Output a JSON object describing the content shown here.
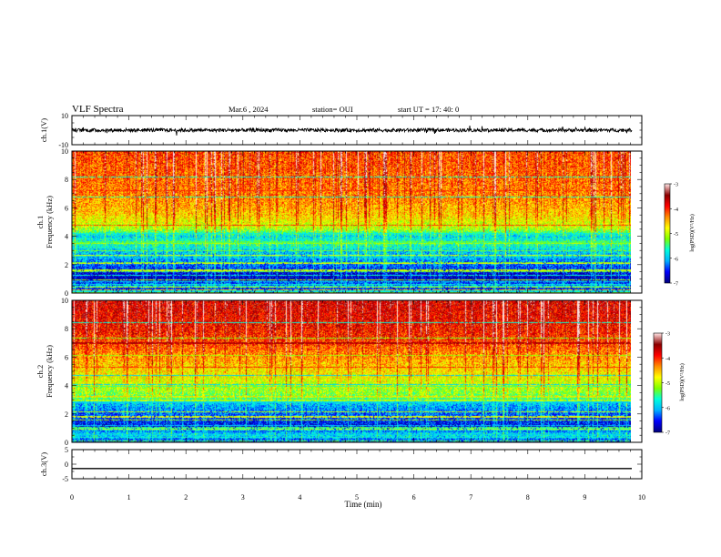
{
  "header": {
    "title": "VLF Spectra",
    "date": "Mar.6  , 2024",
    "station": "station= OUI",
    "start": "start  UT  =   17: 40: 0"
  },
  "colors": {
    "cb_stops": [
      "#00007f",
      "#0000ff",
      "#00b4ff",
      "#00ffdc",
      "#7fff00",
      "#ffff00",
      "#ff8c00",
      "#ff0000",
      "#8b0000",
      "#ffe0e0"
    ]
  },
  "chart_data": [
    {
      "type": "line",
      "name": "ch1-waveform",
      "ylabel": "ch.1(V)",
      "ylim": [
        -10,
        10
      ],
      "yticks": [
        10,
        -10
      ],
      "xlim": [
        0,
        10
      ],
      "x_extent": [
        0,
        9.83
      ],
      "level": 0,
      "noise_amplitude": 1.2
    },
    {
      "type": "heatmap",
      "name": "ch1-spectrogram",
      "ylabel": "Frequency  (kHz)",
      "channel": "ch.1",
      "ylim": [
        0,
        10
      ],
      "yticks": [
        0,
        2,
        4,
        6,
        8,
        10
      ],
      "xlim": [
        0,
        10
      ],
      "x_extent": [
        0,
        9.83
      ],
      "colorbar": {
        "label": "log(PSD)(V²/Hz)",
        "range": [
          -7,
          -3
        ],
        "ticks": [
          -3,
          -4,
          -5,
          -6,
          -7
        ]
      },
      "freq_profile": [
        [
          0,
          -6.9
        ],
        [
          0.5,
          -6.2
        ],
        [
          1.0,
          -6.8
        ],
        [
          1.5,
          -6.6
        ],
        [
          2.0,
          -6.3
        ],
        [
          3.0,
          -5.9
        ],
        [
          3.5,
          -5.6
        ],
        [
          4.0,
          -5.9
        ],
        [
          4.5,
          -5.1
        ],
        [
          5.5,
          -4.6
        ],
        [
          7.0,
          -4.3
        ],
        [
          8.5,
          -4.2
        ],
        [
          10,
          -4.1
        ]
      ],
      "lines": [
        [
          0.4,
          -5.0
        ],
        [
          7.2,
          -4.0
        ],
        [
          4.8,
          -4.1
        ],
        [
          0.2,
          -4.5
        ]
      ]
    },
    {
      "type": "heatmap",
      "name": "ch2-spectrogram",
      "ylabel": "Frequency  (kHz)",
      "channel": "ch.2",
      "ylim": [
        0,
        10
      ],
      "yticks": [
        0,
        2,
        4,
        6,
        8,
        10
      ],
      "xlim": [
        0,
        10
      ],
      "x_extent": [
        0,
        9.83
      ],
      "colorbar": {
        "label": "log(PSD)(V²/Hz)",
        "range": [
          -7,
          -3
        ],
        "ticks": [
          -3,
          -4,
          -5,
          -6,
          -7
        ]
      },
      "freq_profile": [
        [
          0,
          -6.5
        ],
        [
          0.5,
          -5.8
        ],
        [
          1.0,
          -6.6
        ],
        [
          1.5,
          -6.5
        ],
        [
          2.0,
          -6.3
        ],
        [
          2.7,
          -6.0
        ],
        [
          3.2,
          -5.3
        ],
        [
          4.0,
          -5.0
        ],
        [
          5.0,
          -4.7
        ],
        [
          6.0,
          -4.4
        ],
        [
          7.0,
          -4.1
        ],
        [
          8.0,
          -3.9
        ],
        [
          10,
          -3.7
        ]
      ],
      "lines": [
        [
          7.0,
          -3.6
        ],
        [
          5.3,
          -4.0
        ],
        [
          3.2,
          -4.6
        ]
      ]
    },
    {
      "type": "line",
      "name": "ch3-waveform",
      "ylabel": "ch.3(V)",
      "ylim": [
        -5,
        5
      ],
      "yticks": [
        5,
        0,
        -5
      ],
      "xlim": [
        0,
        10
      ],
      "x_extent": [
        0,
        9.83
      ],
      "level": -1.5,
      "noise_amplitude": 0
    }
  ],
  "xaxis": {
    "label": "Time  (min)",
    "ticks": [
      0,
      1,
      2,
      3,
      4,
      5,
      6,
      7,
      8,
      9,
      10
    ]
  }
}
